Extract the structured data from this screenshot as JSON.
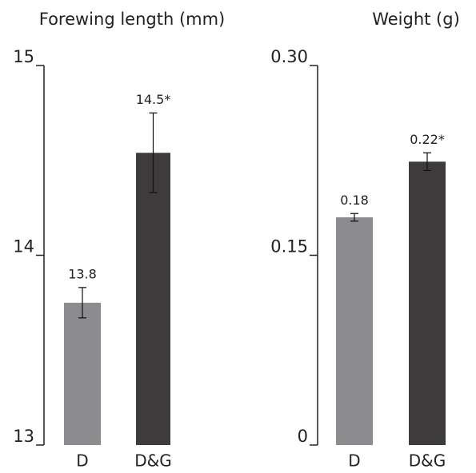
{
  "chart_data": [
    {
      "type": "bar",
      "title": "Forewing length (mm)",
      "categories": [
        "D",
        "D&G"
      ],
      "values": [
        13.75,
        14.54
      ],
      "errors": [
        0.08,
        0.21
      ],
      "value_labels": [
        "13.8",
        "14.5*"
      ],
      "colors": [
        "#8c8c8e",
        "#3d3b3b"
      ],
      "ylim": [
        13,
        15
      ],
      "yticks": [
        13,
        14,
        15
      ]
    },
    {
      "type": "bar",
      "title": "Weight (g)",
      "categories": [
        "D",
        "D&G"
      ],
      "values": [
        0.18,
        0.224
      ],
      "errors": [
        0.003,
        0.007
      ],
      "value_labels": [
        "0.18",
        "0.22*"
      ],
      "colors": [
        "#8c8c8e",
        "#3d3b3b"
      ],
      "ylim": [
        0,
        0.3
      ],
      "yticks": [
        0,
        {
          "value": 0.15,
          "label": "0.15"
        },
        {
          "value": 0.3,
          "label": "0.30"
        }
      ]
    }
  ]
}
